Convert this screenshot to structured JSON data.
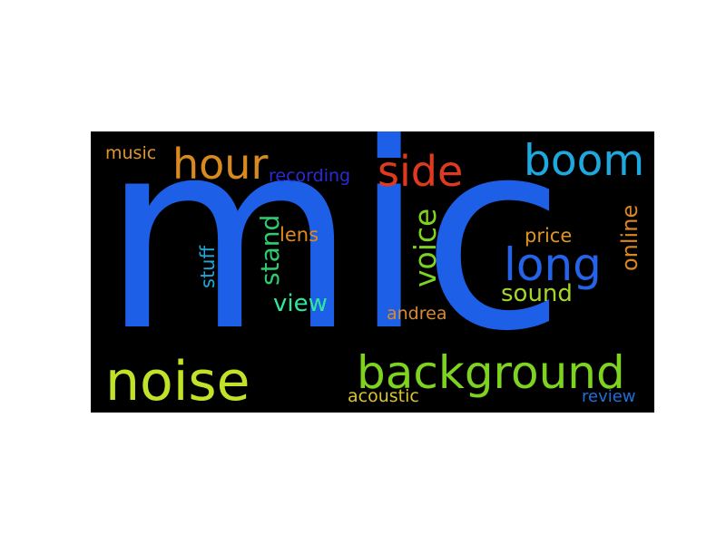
{
  "word_cloud": {
    "background": "#000000",
    "words": [
      {
        "id": "mic",
        "text": "mic",
        "color": "#1d5fe6"
      },
      {
        "id": "noise",
        "text": "noise",
        "color": "#c1e327"
      },
      {
        "id": "background",
        "text": "background",
        "color": "#7ed321"
      },
      {
        "id": "hour",
        "text": "hour",
        "color": "#d98a1e"
      },
      {
        "id": "side",
        "text": "side",
        "color": "#e03a1e"
      },
      {
        "id": "boom",
        "text": "boom",
        "color": "#1ea8e0"
      },
      {
        "id": "long",
        "text": "long",
        "color": "#2563eb"
      },
      {
        "id": "voice",
        "text": "voice",
        "color": "#7ed321"
      },
      {
        "id": "stand",
        "text": "stand",
        "color": "#2ecc71"
      },
      {
        "id": "view",
        "text": "view",
        "color": "#2ee8a0"
      },
      {
        "id": "sound",
        "text": "sound",
        "color": "#a3d62a"
      },
      {
        "id": "online",
        "text": "online",
        "color": "#d9861e"
      },
      {
        "id": "price",
        "text": "price",
        "color": "#e0951e"
      },
      {
        "id": "lens",
        "text": "lens",
        "color": "#e08a1e"
      },
      {
        "id": "stuff",
        "text": "stuff",
        "color": "#1ea8d8"
      },
      {
        "id": "andrea",
        "text": "andrea",
        "color": "#d98a2e"
      },
      {
        "id": "acoustic",
        "text": "acoustic",
        "color": "#d8c52e"
      },
      {
        "id": "music",
        "text": "music",
        "color": "#e0952e"
      },
      {
        "id": "recording",
        "text": "recording",
        "color": "#2a2ad8"
      },
      {
        "id": "review",
        "text": "review",
        "color": "#1e6fd9"
      }
    ]
  }
}
